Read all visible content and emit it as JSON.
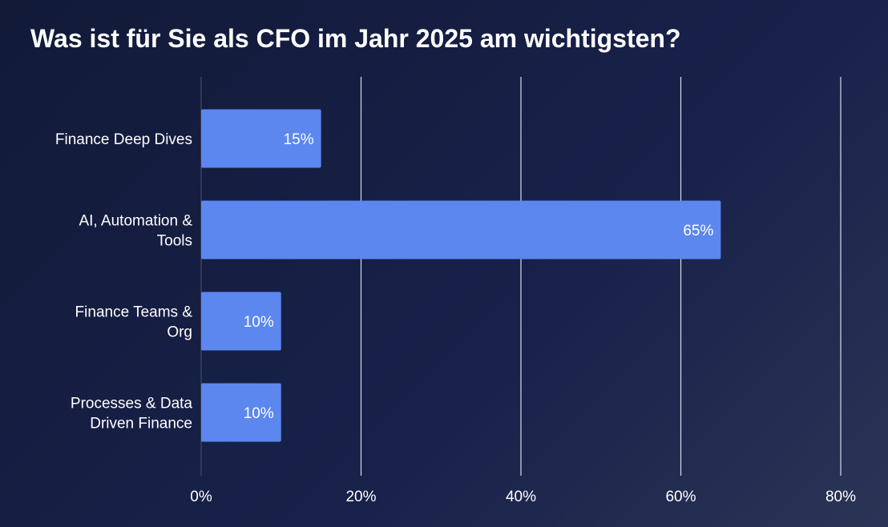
{
  "chart_data": {
    "type": "bar",
    "orientation": "horizontal",
    "title": "Was ist für Sie als CFO im Jahr 2025 am wichtigsten?",
    "categories": [
      [
        "Finance Deep Dives"
      ],
      [
        "AI, Automation &",
        "Tools"
      ],
      [
        "Finance Teams &",
        "Org"
      ],
      [
        "Processes & Data",
        "Driven Finance"
      ]
    ],
    "values": [
      15,
      65,
      10,
      10
    ],
    "value_labels": [
      "15%",
      "65%",
      "10%",
      "10%"
    ],
    "xlim": [
      0,
      80
    ],
    "x_ticks": [
      0,
      20,
      40,
      60,
      80
    ],
    "x_tick_labels": [
      "0%",
      "20%",
      "40%",
      "60%",
      "80%"
    ],
    "grid": true,
    "colors": {
      "bar": "#5b87ee",
      "grid": "#d8dbe6",
      "axis": "#3a4260",
      "text": "#ffffff"
    }
  }
}
